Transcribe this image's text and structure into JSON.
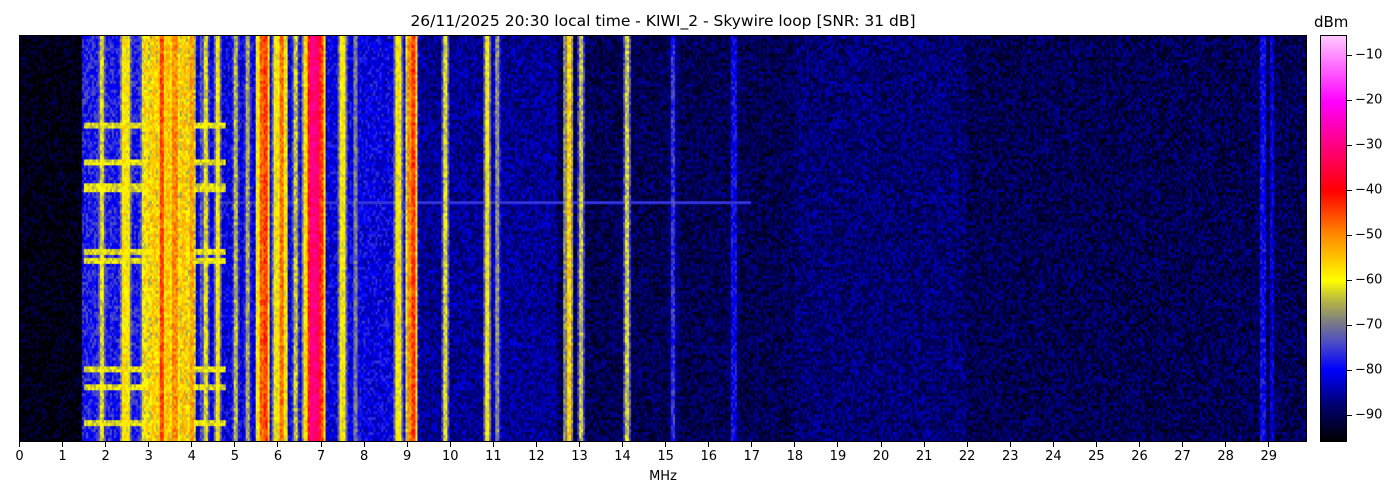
{
  "chart_data": {
    "type": "heatmap",
    "title": "26/11/2025 20:30 local time - KIWI_2 - Skywire loop [SNR: 31 dB]",
    "xlabel": "MHz",
    "ylabel": "",
    "xlim": [
      0,
      29.9
    ],
    "x_ticks": [
      "0",
      "1",
      "2",
      "3",
      "4",
      "5",
      "6",
      "7",
      "8",
      "9",
      "10",
      "11",
      "12",
      "13",
      "14",
      "15",
      "16",
      "17",
      "18",
      "19",
      "20",
      "21",
      "22",
      "23",
      "24",
      "25",
      "26",
      "27",
      "28",
      "29"
    ],
    "colorbar": {
      "label": "dBm",
      "range": [
        -96,
        -5.5
      ],
      "ticks": [
        "-10",
        "-20",
        "-30",
        "-40",
        "-50",
        "-60",
        "-70",
        "-80",
        "-90"
      ]
    },
    "noise_floor": [
      {
        "from_mhz": 0,
        "to_mhz": 1.45,
        "dbm": -95
      },
      {
        "from_mhz": 1.45,
        "to_mhz": 4.1,
        "dbm": -78
      },
      {
        "from_mhz": 4.1,
        "to_mhz": 9.3,
        "dbm": -81
      },
      {
        "from_mhz": 9.3,
        "to_mhz": 12.5,
        "dbm": -86
      },
      {
        "from_mhz": 12.5,
        "to_mhz": 18,
        "dbm": -90
      },
      {
        "from_mhz": 18,
        "to_mhz": 22,
        "dbm": -88
      },
      {
        "from_mhz": 22,
        "to_mhz": 29.9,
        "dbm": -90
      }
    ],
    "signals": [
      {
        "mhz": 1.9,
        "dbm": -62
      },
      {
        "mhz": 2.4,
        "dbm": -58
      },
      {
        "mhz": 2.5,
        "dbm": -60
      },
      {
        "mhz": 2.9,
        "dbm": -62
      },
      {
        "mhz": 3.1,
        "dbm": -56
      },
      {
        "mhz": 3.3,
        "dbm": -45
      },
      {
        "mhz": 3.45,
        "dbm": -55
      },
      {
        "mhz": 3.6,
        "dbm": -50
      },
      {
        "mhz": 3.8,
        "dbm": -55
      },
      {
        "mhz": 4.0,
        "dbm": -52
      },
      {
        "mhz": 4.3,
        "dbm": -62
      },
      {
        "mhz": 4.6,
        "dbm": -60
      },
      {
        "mhz": 5.0,
        "dbm": -65
      },
      {
        "mhz": 5.3,
        "dbm": -66
      },
      {
        "mhz": 5.6,
        "dbm": -47
      },
      {
        "mhz": 5.7,
        "dbm": -44
      },
      {
        "mhz": 5.95,
        "dbm": -60
      },
      {
        "mhz": 6.1,
        "dbm": -48
      },
      {
        "mhz": 6.4,
        "dbm": -64
      },
      {
        "mhz": 6.65,
        "dbm": -57
      },
      {
        "mhz": 6.8,
        "dbm": -30
      },
      {
        "mhz": 6.9,
        "dbm": -32
      },
      {
        "mhz": 7.0,
        "dbm": -45
      },
      {
        "mhz": 7.5,
        "dbm": -60
      },
      {
        "mhz": 7.8,
        "dbm": -70
      },
      {
        "mhz": 8.8,
        "dbm": -60
      },
      {
        "mhz": 9.05,
        "dbm": -50
      },
      {
        "mhz": 9.15,
        "dbm": -44
      },
      {
        "mhz": 9.9,
        "dbm": -62
      },
      {
        "mhz": 10.85,
        "dbm": -60
      },
      {
        "mhz": 11.1,
        "dbm": -68
      },
      {
        "mhz": 12.75,
        "dbm": -56
      },
      {
        "mhz": 13.05,
        "dbm": -64
      },
      {
        "mhz": 14.1,
        "dbm": -63
      },
      {
        "mhz": 15.2,
        "dbm": -76
      },
      {
        "mhz": 16.6,
        "dbm": -80
      },
      {
        "mhz": 28.9,
        "dbm": -80
      },
      {
        "mhz": 29.1,
        "dbm": -82
      }
    ],
    "colormap": [
      {
        "dbm": -96,
        "color": "#000000"
      },
      {
        "dbm": -88,
        "color": "#00006e"
      },
      {
        "dbm": -80,
        "color": "#0000ff"
      },
      {
        "dbm": -74,
        "color": "#4b4bc8"
      },
      {
        "dbm": -69,
        "color": "#808080"
      },
      {
        "dbm": -64,
        "color": "#bebe3c"
      },
      {
        "dbm": -60,
        "color": "#ffff00"
      },
      {
        "dbm": -50,
        "color": "#ff8c00"
      },
      {
        "dbm": -40,
        "color": "#ff0000"
      },
      {
        "dbm": -30,
        "color": "#ff0080"
      },
      {
        "dbm": -20,
        "color": "#ff00ff"
      },
      {
        "dbm": -5.5,
        "color": "#ffc8ff"
      }
    ]
  }
}
